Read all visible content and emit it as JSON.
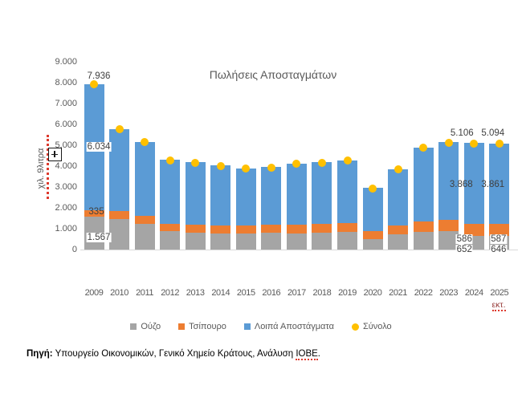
{
  "chart_data": {
    "type": "bar",
    "stacked": true,
    "title": "Πωλήσεις Αποσταγμάτων",
    "ylabel": "χιλ. 9λιτρα",
    "ylim": [
      0,
      9000
    ],
    "y_tick_step": 1000,
    "y_ticks": [
      "0",
      "1.000",
      "2.000",
      "3.000",
      "4.000",
      "5.000",
      "6.000",
      "7.000",
      "8.000",
      "9.000"
    ],
    "grid": false,
    "legend_position": "bottom",
    "categories": [
      "2009",
      "2010",
      "2011",
      "2012",
      "2013",
      "2014",
      "2015",
      "2016",
      "2017",
      "2018",
      "2019",
      "2020",
      "2021",
      "2022",
      "2023",
      "2024",
      "2025"
    ],
    "last_category_note": "εκτ.",
    "series": [
      {
        "name": "Ούζο",
        "key": "ouzo",
        "color": "#A5A5A5",
        "marker": "square",
        "values": [
          1567,
          1450,
          1230,
          890,
          820,
          780,
          760,
          790,
          770,
          810,
          850,
          500,
          720,
          840,
          900,
          652,
          646
        ]
      },
      {
        "name": "Τσίπουρο",
        "key": "tsipouro",
        "color": "#ED7D31",
        "marker": "square",
        "values": [
          335,
          380,
          390,
          330,
          360,
          370,
          380,
          400,
          410,
          420,
          420,
          390,
          450,
          510,
          540,
          586,
          587
        ]
      },
      {
        "name": "Λοιπά Αποστάγματα",
        "key": "loipa",
        "color": "#5B9BD5",
        "marker": "square",
        "values": [
          6034,
          3950,
          3550,
          3080,
          3000,
          2880,
          2750,
          2770,
          2940,
          2950,
          3000,
          2070,
          2690,
          3540,
          3700,
          3868,
          3861
        ]
      },
      {
        "name": "Σύνολο",
        "key": "synolo",
        "color": "#FFC000",
        "marker": "circle",
        "render": "point",
        "values": [
          7936,
          5780,
          5170,
          4300,
          4180,
          4030,
          3890,
          3960,
          4120,
          4180,
          4270,
          2960,
          3860,
          4890,
          5140,
          5106,
          5094
        ]
      }
    ],
    "data_labels": [
      {
        "year": "2009",
        "total": "7.936",
        "loipa": "6.034",
        "tsipouro": "335",
        "ouzo": "1.567"
      },
      {
        "year": "2024",
        "total": "5.106",
        "loipa": "3.868",
        "tsipouro": "586",
        "ouzo": "652"
      },
      {
        "year": "2025",
        "total": "5.094",
        "loipa": "3.861",
        "tsipouro": "587",
        "ouzo": "646"
      }
    ]
  },
  "footer": {
    "label": "Πηγή:",
    "text": " Υπουργείο Οικονομικών, Γενικό Χημείο Κράτους, Ανάλυση ",
    "highlight": "ΙΟΒΕ",
    "suffix": "."
  }
}
